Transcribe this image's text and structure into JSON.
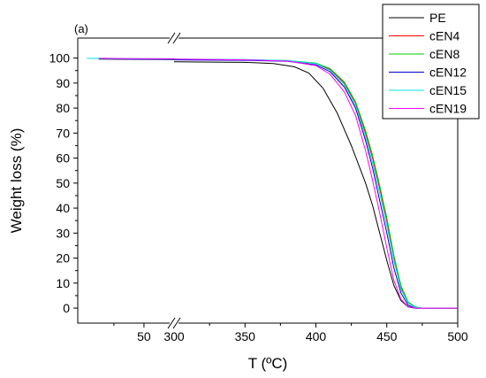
{
  "chart_data": {
    "type": "line",
    "panel_label": "(a)",
    "xlabel": "T (ºC)",
    "ylabel": "Weight loss (%)",
    "axis_break": {
      "left_range": [
        28,
        60
      ],
      "right_range": [
        300,
        500
      ]
    },
    "xticks": [
      50,
      300,
      350,
      400,
      450,
      500
    ],
    "yticks": [
      0,
      10,
      20,
      30,
      40,
      50,
      60,
      70,
      80,
      90,
      100
    ],
    "ylim": [
      -6,
      108
    ],
    "legend_position": "top-right",
    "series": [
      {
        "name": "PE",
        "color": "#000000",
        "left_points": [
          [
            35,
            99.6
          ],
          [
            45,
            99.5
          ],
          [
            60,
            99.4
          ]
        ],
        "right_points": [
          [
            300,
            98.5
          ],
          [
            350,
            98.3
          ],
          [
            370,
            97.8
          ],
          [
            385,
            96.5
          ],
          [
            395,
            94.0
          ],
          [
            405,
            88.0
          ],
          [
            415,
            78.0
          ],
          [
            425,
            65.0
          ],
          [
            435,
            50.0
          ],
          [
            440,
            41.0
          ],
          [
            445,
            30.0
          ],
          [
            450,
            19.0
          ],
          [
            455,
            9.0
          ],
          [
            460,
            3.0
          ],
          [
            465,
            0.5
          ],
          [
            470,
            0.0
          ],
          [
            500,
            0.0
          ]
        ]
      },
      {
        "name": "cEN4",
        "color": "#ff0000",
        "left_points": [
          [
            35,
            99.8
          ],
          [
            45,
            99.7
          ],
          [
            60,
            99.6
          ]
        ],
        "right_points": [
          [
            300,
            99.4
          ],
          [
            350,
            99.2
          ],
          [
            380,
            98.9
          ],
          [
            400,
            97.8
          ],
          [
            410,
            95.5
          ],
          [
            420,
            90.0
          ],
          [
            428,
            82.0
          ],
          [
            435,
            70.0
          ],
          [
            440,
            60.0
          ],
          [
            445,
            48.0
          ],
          [
            450,
            35.0
          ],
          [
            455,
            20.0
          ],
          [
            460,
            8.0
          ],
          [
            465,
            2.0
          ],
          [
            470,
            0.3
          ],
          [
            475,
            0.0
          ],
          [
            500,
            0.0
          ]
        ]
      },
      {
        "name": "cEN8",
        "color": "#00cc00",
        "left_points": [
          [
            35,
            99.8
          ],
          [
            45,
            99.7
          ],
          [
            60,
            99.6
          ]
        ],
        "right_points": [
          [
            300,
            99.5
          ],
          [
            350,
            99.3
          ],
          [
            380,
            99.0
          ],
          [
            400,
            98.0
          ],
          [
            410,
            95.8
          ],
          [
            420,
            90.5
          ],
          [
            428,
            82.5
          ],
          [
            435,
            71.0
          ],
          [
            440,
            61.0
          ],
          [
            445,
            49.0
          ],
          [
            450,
            36.0
          ],
          [
            455,
            21.0
          ],
          [
            460,
            9.0
          ],
          [
            465,
            2.5
          ],
          [
            470,
            0.5
          ],
          [
            475,
            0.0
          ],
          [
            500,
            0.0
          ]
        ]
      },
      {
        "name": "cEN12",
        "color": "#0000cc",
        "left_points": [
          [
            35,
            99.7
          ],
          [
            45,
            99.6
          ],
          [
            60,
            99.5
          ]
        ],
        "right_points": [
          [
            300,
            99.3
          ],
          [
            350,
            99.1
          ],
          [
            380,
            98.7
          ],
          [
            400,
            97.3
          ],
          [
            410,
            94.5
          ],
          [
            420,
            88.5
          ],
          [
            428,
            80.0
          ],
          [
            435,
            67.0
          ],
          [
            440,
            56.0
          ],
          [
            445,
            43.0
          ],
          [
            450,
            30.0
          ],
          [
            455,
            16.0
          ],
          [
            460,
            6.0
          ],
          [
            465,
            1.2
          ],
          [
            470,
            0.0
          ],
          [
            500,
            0.0
          ]
        ]
      },
      {
        "name": "cEN15",
        "color": "#00e5e5",
        "left_points": [
          [
            31,
            99.9
          ],
          [
            40,
            99.8
          ],
          [
            60,
            99.7
          ]
        ],
        "right_points": [
          [
            300,
            99.6
          ],
          [
            350,
            99.4
          ],
          [
            380,
            99.0
          ],
          [
            400,
            97.8
          ],
          [
            410,
            95.0
          ],
          [
            420,
            89.5
          ],
          [
            428,
            81.0
          ],
          [
            435,
            68.5
          ],
          [
            440,
            58.0
          ],
          [
            445,
            46.0
          ],
          [
            450,
            33.0
          ],
          [
            455,
            19.0
          ],
          [
            460,
            7.5
          ],
          [
            465,
            2.0
          ],
          [
            470,
            0.3
          ],
          [
            475,
            0.0
          ],
          [
            500,
            0.0
          ]
        ]
      },
      {
        "name": "cEN19",
        "color": "#ff00ff",
        "left_points": [
          [
            35,
            99.9
          ],
          [
            45,
            99.8
          ],
          [
            60,
            99.7
          ]
        ],
        "right_points": [
          [
            300,
            99.6
          ],
          [
            350,
            99.3
          ],
          [
            380,
            98.8
          ],
          [
            400,
            97.0
          ],
          [
            410,
            93.5
          ],
          [
            420,
            86.5
          ],
          [
            428,
            77.0
          ],
          [
            435,
            63.0
          ],
          [
            440,
            51.0
          ],
          [
            445,
            38.0
          ],
          [
            450,
            24.0
          ],
          [
            455,
            11.0
          ],
          [
            460,
            3.5
          ],
          [
            465,
            0.6
          ],
          [
            470,
            0.0
          ],
          [
            500,
            0.0
          ]
        ]
      }
    ]
  }
}
